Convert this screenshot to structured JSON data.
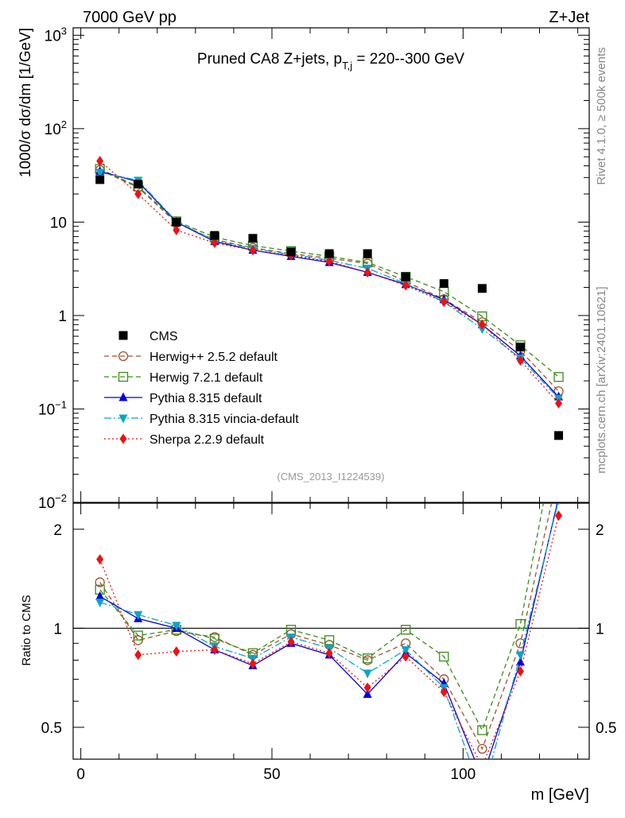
{
  "header": {
    "left": "7000 GeV pp",
    "right": "Z+Jet"
  },
  "side_labels": {
    "rivet": "Rivet 4.1.0, ≥ 500k events",
    "mcplots": "mcplots.cern.ch [arXiv:2401.10621]"
  },
  "chart_data": {
    "type": "scatter",
    "title": "Pruned CA8 Z+jets, p_{T,j} = 220--300 GeV",
    "title_main": "Pruned CA8 Z+jets, p",
    "title_sub": "T,j",
    "title_tail": " = 220--300 GeV",
    "analysis_id": "(CMS_2013_I1224539)",
    "xlabel": "m [GeV]",
    "ylabel": "1000/σ  dσ/dm [1/GeV]",
    "ratio_ylabel": "Ratio to CMS",
    "xlim": [
      -2,
      133
    ],
    "ylim_main": [
      0.01,
      1200
    ],
    "ylim_ratio": [
      0.4,
      2.4
    ],
    "x_ticks": [
      0,
      50,
      100
    ],
    "x_tick_labels": [
      "0",
      "50",
      "100"
    ],
    "y_ticks_main": [
      "10^-2",
      "10^-1",
      "1",
      "10",
      "10^2",
      "10^3"
    ],
    "y_ticks_ratio": [
      "0.5",
      "1",
      "2"
    ],
    "x": [
      5,
      15,
      25,
      35,
      45,
      55,
      65,
      75,
      85,
      95,
      105,
      115,
      125
    ],
    "legend": [
      "CMS",
      "Herwig++ 2.5.2 default",
      "Herwig 7.2.1 default",
      "Pythia 8.315 default",
      "Pythia 8.315 vincia-default",
      "Sherpa 2.2.9 default"
    ],
    "data": {
      "name": "CMS",
      "values": [
        28.5,
        25.5,
        10.0,
        7.2,
        6.7,
        4.8,
        4.6,
        4.6,
        2.6,
        2.2,
        1.95,
        0.46,
        0.052
      ]
    },
    "series": [
      {
        "name": "Herwig++ 2.5.2 default",
        "color": "#a0522d",
        "dash": "6,4",
        "marker": "circle-open",
        "values": [
          36,
          23.5,
          9.8,
          6.5,
          5.3,
          4.6,
          4.1,
          3.6,
          2.3,
          1.5,
          0.85,
          0.42,
          0.155
        ]
      },
      {
        "name": "Herwig 7.2.1 default",
        "color": "#3a8c1a",
        "dash": "6,4",
        "marker": "square-open",
        "values": [
          37,
          24,
          10.2,
          6.9,
          5.6,
          4.9,
          4.3,
          3.7,
          2.6,
          1.8,
          0.98,
          0.48,
          0.22
        ]
      },
      {
        "name": "Pythia 8.315 default",
        "color": "#0000dd",
        "dash": "",
        "marker": "triangle-up",
        "values": [
          35,
          27,
          10.0,
          6.2,
          5.0,
          4.3,
          3.7,
          2.9,
          2.15,
          1.48,
          0.8,
          0.37,
          0.135
        ]
      },
      {
        "name": "Pythia 8.315 vincia-default",
        "color": "#0aa5c8",
        "dash": "9,3,2,3",
        "marker": "triangle-down",
        "values": [
          34,
          28,
          10.2,
          6.3,
          5.2,
          4.5,
          3.9,
          3.2,
          2.2,
          1.4,
          0.72,
          0.35,
          0.13
        ]
      },
      {
        "name": "Sherpa 2.2.9 default",
        "color": "#ee1111",
        "dash": "2,3",
        "marker": "diamond",
        "values": [
          45,
          20,
          8.2,
          6.0,
          5.0,
          4.4,
          3.8,
          2.9,
          2.1,
          1.4,
          0.8,
          0.33,
          0.115
        ]
      }
    ],
    "ratios": {
      "Herwig++ 2.5.2 default": [
        1.38,
        0.92,
        0.98,
        0.94,
        0.83,
        0.96,
        0.89,
        0.8,
        0.9,
        0.7,
        0.43,
        0.9,
        3.0
      ],
      "Herwig 7.2.1 default": [
        1.31,
        0.95,
        0.99,
        0.93,
        0.84,
        0.99,
        0.92,
        0.81,
        0.99,
        0.82,
        0.49,
        1.03,
        4.2
      ],
      "Pythia 8.315 default": [
        1.25,
        1.07,
        1.0,
        0.86,
        0.77,
        0.9,
        0.83,
        0.63,
        0.84,
        0.68,
        0.35,
        0.79,
        2.5
      ],
      "Pythia 8.315 vincia-default": [
        1.2,
        1.1,
        1.02,
        0.88,
        0.81,
        0.94,
        0.87,
        0.73,
        0.86,
        0.66,
        0.31,
        0.83,
        2.45
      ],
      "Sherpa 2.2.9 default": [
        1.62,
        0.83,
        0.85,
        0.86,
        0.78,
        0.91,
        0.84,
        0.66,
        0.82,
        0.64,
        0.38,
        0.74,
        2.2
      ]
    }
  }
}
